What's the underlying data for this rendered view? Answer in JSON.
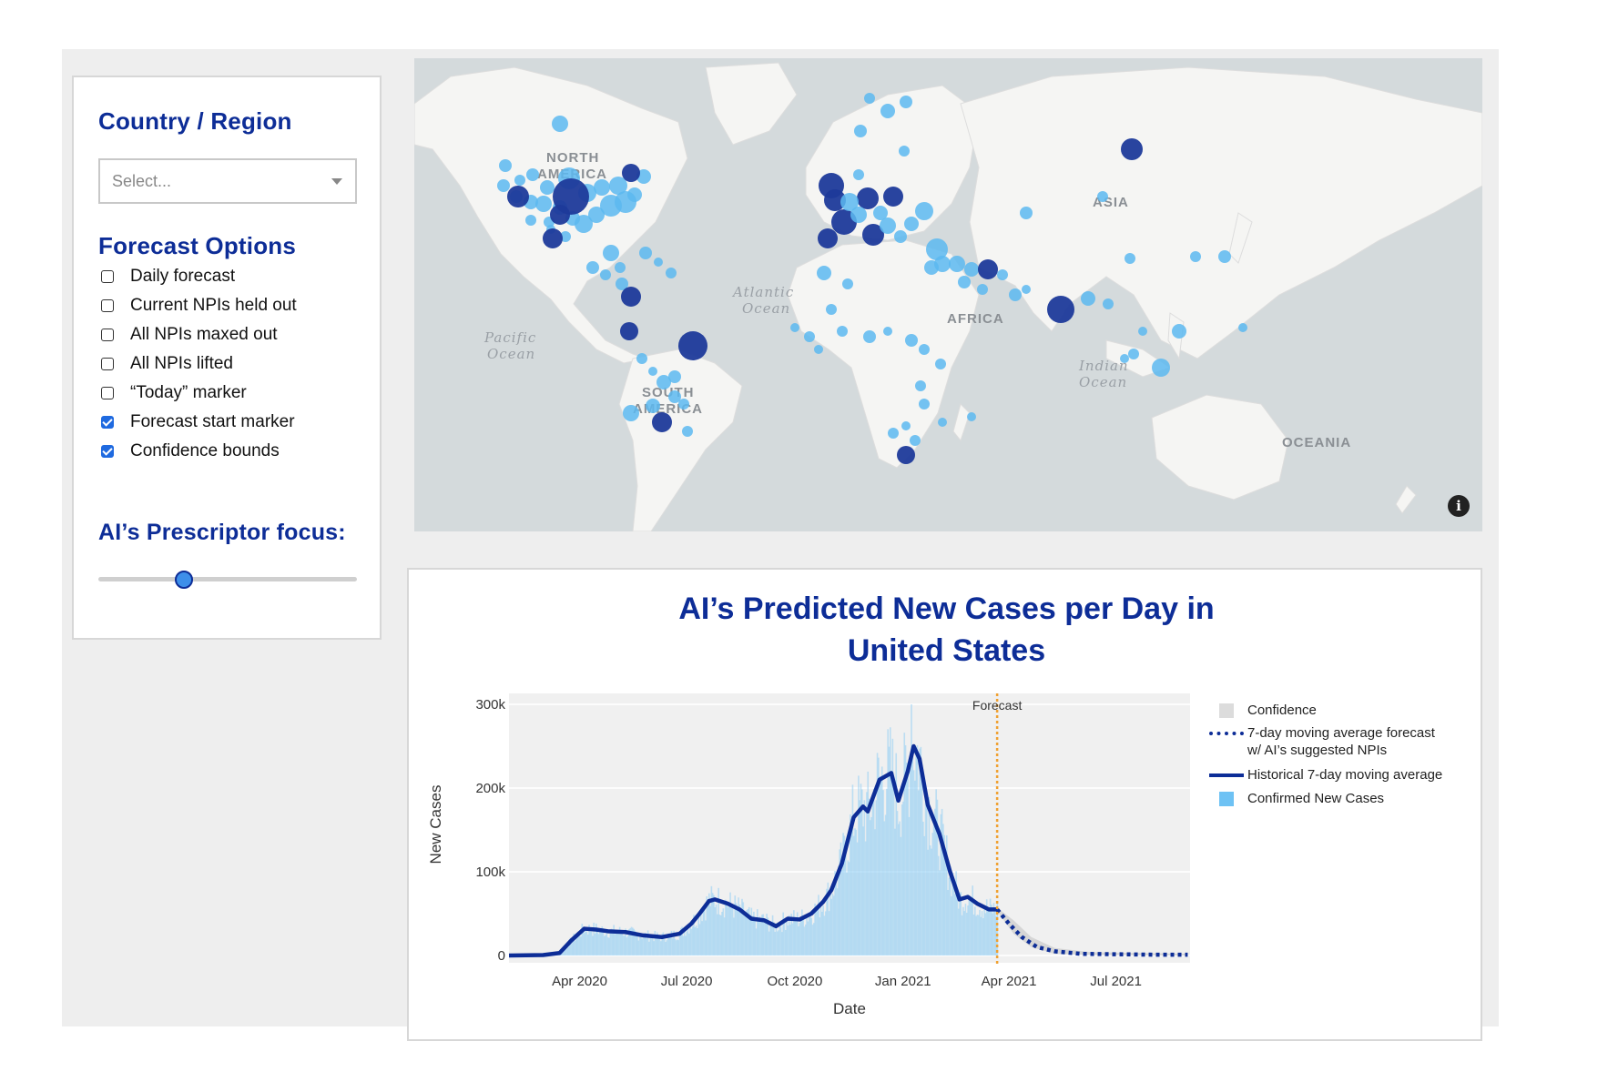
{
  "sidebar": {
    "country_title": "Country / Region",
    "select_placeholder": "Select...",
    "forecast_title": "Forecast Options",
    "options": [
      {
        "label": "Daily forecast",
        "checked": false
      },
      {
        "label": "Current NPIs held out",
        "checked": false
      },
      {
        "label": "All NPIs maxed out",
        "checked": false
      },
      {
        "label": "All NPIs lifted",
        "checked": false
      },
      {
        "label": "“Today” marker",
        "checked": false
      },
      {
        "label": "Forecast start marker",
        "checked": true
      },
      {
        "label": "Confidence bounds",
        "checked": true
      }
    ],
    "prescriptor_title": "AI’s Prescriptor focus:",
    "prescriptor_value": 0.33
  },
  "map": {
    "labels": {
      "north_america": [
        "NORTH",
        "AMERICA"
      ],
      "south_america": [
        "SOUTH",
        "AMERICA"
      ],
      "africa": "AFRICA",
      "asia": "ASIA",
      "oceania": "OCEANIA",
      "atlantic": [
        "Atlantic",
        "Ocean"
      ],
      "pacific": [
        "Pacific",
        "Ocean"
      ],
      "indian": [
        "Indian",
        "Ocean"
      ]
    },
    "info_icon": "info-icon",
    "colors": {
      "land": "#f4f4f2",
      "water": "#d4dadc",
      "bubble_light": "#5cb8f0",
      "bubble_dark": "#1d3a9a"
    }
  },
  "chart": {
    "title_line1": "AI’s Predicted New Cases per Day in",
    "title_line2": "United States",
    "forecast_annotation": "Forecast",
    "legend": [
      "Confidence",
      "7-day moving average forecast",
      "w/ AI’s suggested NPIs",
      "Historical 7-day moving average",
      "Confirmed New Cases"
    ]
  },
  "chart_data": {
    "type": "line",
    "title": "AI’s Predicted New Cases per Day in United States",
    "xlabel": "Date",
    "ylabel": "New Cases",
    "ylim": [
      0,
      300000
    ],
    "y_ticks": [
      0,
      100000,
      200000,
      300000
    ],
    "y_tick_labels": [
      "0",
      "100k",
      "200k",
      "300k"
    ],
    "x_tick_labels": [
      "Apr 2020",
      "Jul 2020",
      "Oct 2020",
      "Jan 2021",
      "Apr 2021",
      "Jul 2021"
    ],
    "forecast_start": "2021-03-22",
    "series": [
      {
        "name": "Historical 7-day moving average",
        "points": [
          [
            "2020-02-01",
            0
          ],
          [
            "2020-03-01",
            500
          ],
          [
            "2020-03-15",
            3000
          ],
          [
            "2020-03-25",
            18000
          ],
          [
            "2020-04-05",
            32000
          ],
          [
            "2020-04-15",
            31000
          ],
          [
            "2020-04-25",
            29000
          ],
          [
            "2020-05-10",
            28000
          ],
          [
            "2020-05-25",
            24000
          ],
          [
            "2020-06-10",
            22000
          ],
          [
            "2020-06-25",
            26000
          ],
          [
            "2020-07-05",
            38000
          ],
          [
            "2020-07-12",
            50000
          ],
          [
            "2020-07-20",
            65000
          ],
          [
            "2020-07-25",
            67000
          ],
          [
            "2020-08-05",
            62000
          ],
          [
            "2020-08-15",
            55000
          ],
          [
            "2020-08-25",
            44000
          ],
          [
            "2020-09-05",
            42000
          ],
          [
            "2020-09-15",
            35000
          ],
          [
            "2020-09-25",
            44000
          ],
          [
            "2020-10-05",
            43000
          ],
          [
            "2020-10-15",
            50000
          ],
          [
            "2020-10-25",
            64000
          ],
          [
            "2020-11-01",
            78000
          ],
          [
            "2020-11-10",
            110000
          ],
          [
            "2020-11-20",
            165000
          ],
          [
            "2020-11-28",
            178000
          ],
          [
            "2020-12-02",
            172000
          ],
          [
            "2020-12-12",
            210000
          ],
          [
            "2020-12-22",
            218000
          ],
          [
            "2020-12-28",
            185000
          ],
          [
            "2021-01-05",
            220000
          ],
          [
            "2021-01-10",
            250000
          ],
          [
            "2021-01-15",
            235000
          ],
          [
            "2021-01-22",
            180000
          ],
          [
            "2021-02-01",
            145000
          ],
          [
            "2021-02-10",
            100000
          ],
          [
            "2021-02-18",
            67000
          ],
          [
            "2021-02-25",
            70000
          ],
          [
            "2021-03-05",
            62000
          ],
          [
            "2021-03-15",
            55000
          ],
          [
            "2021-03-22",
            55000
          ]
        ]
      },
      {
        "name": "7-day moving average forecast w/ AI’s suggested NPIs",
        "points": [
          [
            "2021-03-22",
            55000
          ],
          [
            "2021-04-01",
            38000
          ],
          [
            "2021-04-12",
            22000
          ],
          [
            "2021-04-25",
            10000
          ],
          [
            "2021-05-10",
            5000
          ],
          [
            "2021-06-01",
            2000
          ],
          [
            "2021-07-01",
            1500
          ],
          [
            "2021-08-01",
            1000
          ],
          [
            "2021-08-31",
            1000
          ]
        ]
      },
      {
        "name": "Confidence",
        "upper": [
          [
            "2021-03-22",
            57000
          ],
          [
            "2021-04-05",
            42000
          ],
          [
            "2021-04-20",
            22000
          ],
          [
            "2021-05-10",
            9000
          ],
          [
            "2021-06-10",
            4000
          ],
          [
            "2021-08-31",
            2000
          ]
        ],
        "lower": [
          [
            "2021-03-22",
            53000
          ],
          [
            "2021-04-05",
            26000
          ],
          [
            "2021-04-20",
            10000
          ],
          [
            "2021-05-10",
            2000
          ],
          [
            "2021-06-10",
            500
          ],
          [
            "2021-08-31",
            0
          ]
        ]
      },
      {
        "name": "Confirmed New Cases",
        "note": "daily bars closely follow the 7-day average with noise; peak ≈ 300000 around 2021-01-08"
      }
    ]
  }
}
